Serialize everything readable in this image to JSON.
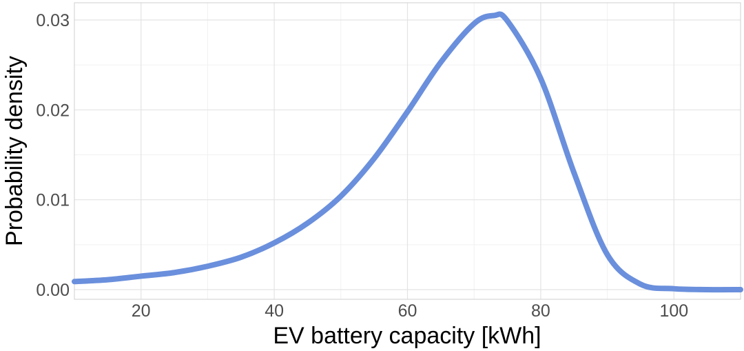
{
  "chart_data": {
    "type": "line",
    "xlabel": "EV battery capacity [kWh]",
    "ylabel": "Probability density",
    "xlim": [
      10,
      110
    ],
    "ylim": [
      0,
      0.0315
    ],
    "x_ticks": [
      20,
      40,
      60,
      80,
      100
    ],
    "x_tick_labels": [
      "20",
      "40",
      "60",
      "80",
      "100"
    ],
    "y_ticks": [
      0,
      0.01,
      0.02,
      0.03
    ],
    "y_tick_labels": [
      "0.00",
      "0.01",
      "0.02",
      "0.03"
    ],
    "grid": true,
    "line_color": "#6a8fdc",
    "series": [
      {
        "x": [
          10,
          15,
          20,
          25,
          30,
          35,
          40,
          45,
          50,
          55,
          60,
          65,
          70,
          73,
          75,
          80,
          85,
          90,
          95,
          100,
          105,
          110
        ],
        "y": [
          0.0009,
          0.0011,
          0.0015,
          0.0019,
          0.0026,
          0.0036,
          0.0052,
          0.0074,
          0.0104,
          0.0146,
          0.0198,
          0.0253,
          0.0296,
          0.0305,
          0.0299,
          0.0235,
          0.013,
          0.0039,
          0.0006,
          0.0001,
          0.0,
          0.0
        ]
      }
    ]
  }
}
